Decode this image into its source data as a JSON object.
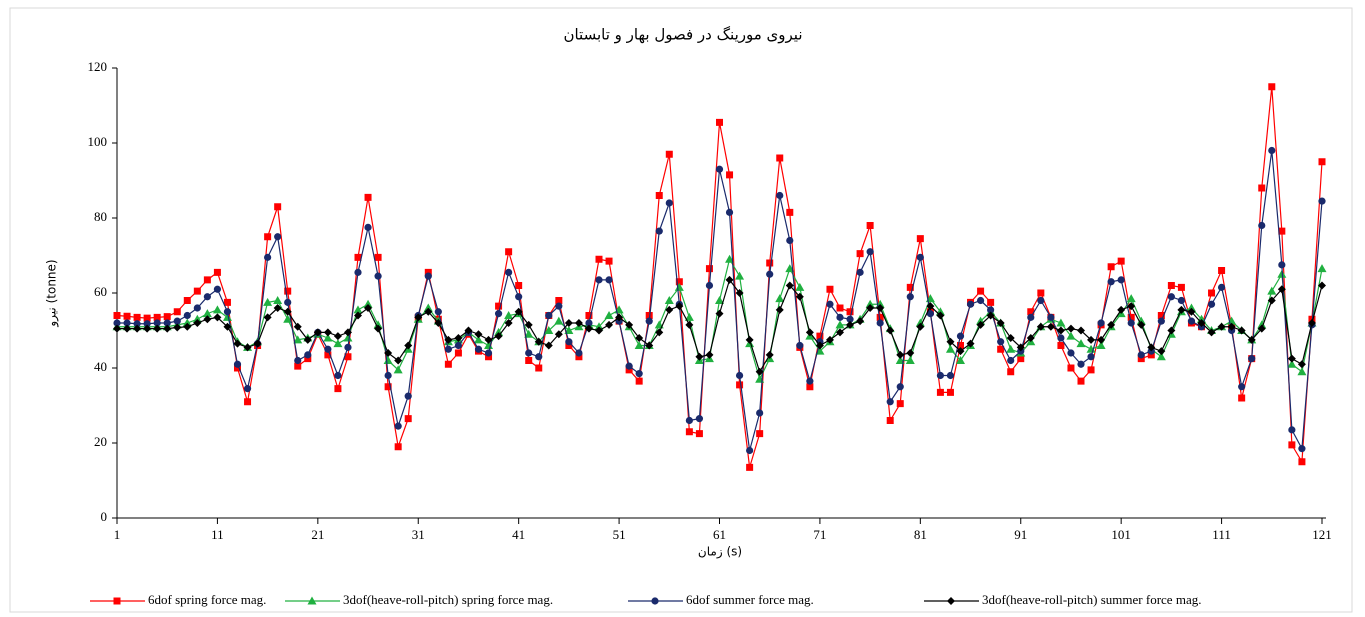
{
  "chart_data": {
    "type": "line",
    "title": "نیروی مورینگ در فصول بهار و تابستان",
    "x_label": "زمان (s)",
    "y_label": "نیرو (tonne)",
    "x": [
      1,
      2,
      3,
      4,
      5,
      6,
      7,
      8,
      9,
      10,
      11,
      12,
      13,
      14,
      15,
      16,
      17,
      18,
      19,
      20,
      21,
      22,
      23,
      24,
      25,
      26,
      27,
      28,
      29,
      30,
      31,
      32,
      33,
      34,
      35,
      36,
      37,
      38,
      39,
      40,
      41,
      42,
      43,
      44,
      45,
      46,
      47,
      48,
      49,
      50,
      51,
      52,
      53,
      54,
      55,
      56,
      57,
      58,
      59,
      60,
      61,
      62,
      63,
      64,
      65,
      66,
      67,
      68,
      69,
      70,
      71,
      72,
      73,
      74,
      75,
      76,
      77,
      78,
      79,
      80,
      81,
      82,
      83,
      84,
      85,
      86,
      87,
      88,
      89,
      90,
      91,
      92,
      93,
      94,
      95,
      96,
      97,
      98,
      99,
      100,
      101,
      102,
      103,
      104,
      105,
      106,
      107,
      108,
      109,
      110,
      111,
      112,
      113,
      114,
      115,
      116,
      117,
      118,
      119,
      120,
      121
    ],
    "xlim": [
      1,
      121
    ],
    "xticks": [
      1,
      11,
      21,
      31,
      41,
      51,
      61,
      71,
      81,
      91,
      101,
      111,
      121
    ],
    "ylim": [
      0,
      120
    ],
    "yticks": [
      0,
      20,
      40,
      60,
      80,
      100,
      120
    ],
    "legend": "bottom",
    "series": [
      {
        "name": "6dof spring force mag.",
        "color": "#ff0000",
        "marker": "square",
        "values": [
          54,
          53.8,
          53.5,
          53.3,
          53.5,
          53.7,
          55,
          58,
          60.5,
          63.5,
          65.5,
          57.5,
          40,
          31,
          46,
          75,
          83,
          60.5,
          40.5,
          42.5,
          49,
          43.5,
          34.5,
          43,
          69.5,
          85.5,
          69.5,
          35,
          19,
          26.5,
          53.5,
          65.5,
          53,
          41,
          44,
          49,
          44.5,
          43,
          56.5,
          71,
          62,
          42,
          40,
          54,
          58,
          46,
          43,
          54,
          69,
          68.5,
          52.5,
          39.5,
          36.5,
          54,
          86,
          97,
          63,
          23,
          22.5,
          66.5,
          105.5,
          91.5,
          35.5,
          13.5,
          22.5,
          68,
          96,
          81.5,
          45.5,
          35,
          48.5,
          61,
          56,
          55,
          70.5,
          78,
          53.5,
          26,
          30.5,
          61.5,
          74.5,
          55,
          33.5,
          33.5,
          46,
          57.5,
          60.5,
          57.5,
          45,
          39,
          42.5,
          55,
          60,
          53.5,
          46,
          40,
          36.5,
          39.5,
          51.5,
          67,
          68.5,
          53.5,
          42.5,
          43.5,
          54,
          62,
          61.5,
          52,
          51,
          60,
          66,
          51,
          32,
          42.5,
          88,
          115,
          76.5,
          19.5,
          15,
          53,
          95
        ]
      },
      {
        "name": "3dof(heave-roll-pitch) spring force mag.",
        "color": "#20b040",
        "marker": "triangle",
        "values": [
          51,
          51,
          51,
          51,
          51,
          51,
          51.5,
          52,
          53,
          54.5,
          55.5,
          53.5,
          47,
          45.5,
          47,
          57.5,
          58,
          53,
          47.5,
          48,
          49,
          48,
          46.5,
          48,
          55.5,
          57,
          51.5,
          42,
          39.5,
          45,
          53,
          56,
          52.5,
          47,
          47.5,
          49.5,
          47.5,
          46,
          49.5,
          54,
          54.5,
          49,
          47,
          50,
          52.5,
          50,
          51,
          51.5,
          51,
          54,
          55.5,
          51,
          46,
          46,
          51.5,
          58,
          61.5,
          53.5,
          42,
          42.5,
          58,
          69,
          64.5,
          46.5,
          37,
          42.5,
          58.5,
          66.5,
          61.5,
          48.5,
          44.5,
          47,
          51.5,
          51.5,
          53,
          57,
          57,
          50.5,
          42,
          42,
          52,
          58.5,
          55,
          45,
          42,
          46,
          52.5,
          55,
          52,
          45,
          44,
          47,
          51,
          53,
          52,
          48.5,
          46.5,
          45,
          46,
          51,
          54.5,
          58.5,
          52.5,
          45,
          43,
          49,
          55,
          56,
          53,
          50,
          51,
          52.5,
          50,
          47.5,
          51.5,
          60.5,
          65,
          41,
          39,
          52,
          66.5
        ]
      },
      {
        "name": "6dof summer force mag.",
        "color": "#1a2a6c",
        "marker": "circle",
        "values": [
          52,
          52,
          51.8,
          51.8,
          52,
          52,
          52.5,
          54,
          56,
          59,
          61,
          55,
          41,
          34.5,
          46.5,
          69.5,
          75,
          57.5,
          42,
          43.5,
          49.5,
          45,
          38,
          45.5,
          65.5,
          77.5,
          64.5,
          38,
          24.5,
          32.5,
          54,
          64.5,
          55,
          45,
          46,
          49.5,
          45,
          44,
          54.5,
          65.5,
          59,
          44,
          43,
          54,
          56.5,
          47,
          44,
          52,
          63.5,
          63.5,
          52.5,
          40.5,
          38.5,
          52.5,
          76.5,
          84,
          57,
          26,
          26.5,
          62,
          93,
          81.5,
          38,
          18,
          28,
          65,
          86,
          74,
          46,
          36.5,
          47,
          57,
          53.5,
          53,
          65.5,
          71,
          52,
          31,
          35,
          59,
          69.5,
          54.5,
          38,
          38,
          48.5,
          57,
          58,
          55.5,
          47,
          42,
          44.5,
          53.5,
          58,
          53.5,
          48,
          44,
          41,
          43,
          52,
          63,
          63.5,
          52,
          43.5,
          44.5,
          52.5,
          59,
          58,
          52.5,
          51,
          57,
          61.5,
          50,
          35,
          42.5,
          78,
          98,
          67.5,
          23.5,
          18.5,
          51.5,
          84.5
        ]
      },
      {
        "name": "3dof(heave-roll-pitch) summer force mag.",
        "color": "#000000",
        "marker": "diamond",
        "values": [
          50.5,
          50.5,
          50.5,
          50.5,
          50.5,
          50.5,
          50.8,
          51,
          52,
          53,
          53.5,
          51,
          46.5,
          45.5,
          46.5,
          53.5,
          56,
          55,
          51,
          47.5,
          49.5,
          49.5,
          48.5,
          49.5,
          54,
          56,
          50.5,
          44,
          42,
          46,
          53.5,
          55,
          52,
          47.5,
          48,
          50,
          49,
          47.5,
          48.5,
          52,
          55,
          51.5,
          47,
          46,
          49,
          52,
          52,
          50.5,
          50,
          51.5,
          53.5,
          51.5,
          48,
          46,
          49.5,
          55.5,
          56.5,
          51.5,
          43,
          43.5,
          54.5,
          63.5,
          60,
          47.5,
          39,
          43.5,
          55.5,
          62,
          59,
          49.5,
          46,
          47.5,
          49.5,
          51.5,
          52.5,
          56,
          56,
          50,
          43.5,
          44,
          51,
          56.5,
          54,
          47,
          44.5,
          46.5,
          51.5,
          54,
          52,
          48,
          45.5,
          48,
          51,
          51,
          50,
          50.5,
          50,
          47.5,
          47.5,
          51.5,
          55.5,
          56.5,
          51.5,
          45.5,
          44.5,
          50,
          55.5,
          55,
          52,
          49.5,
          51,
          51,
          50,
          47.5,
          50.5,
          58,
          61,
          42.5,
          41,
          52,
          62
        ]
      }
    ]
  }
}
